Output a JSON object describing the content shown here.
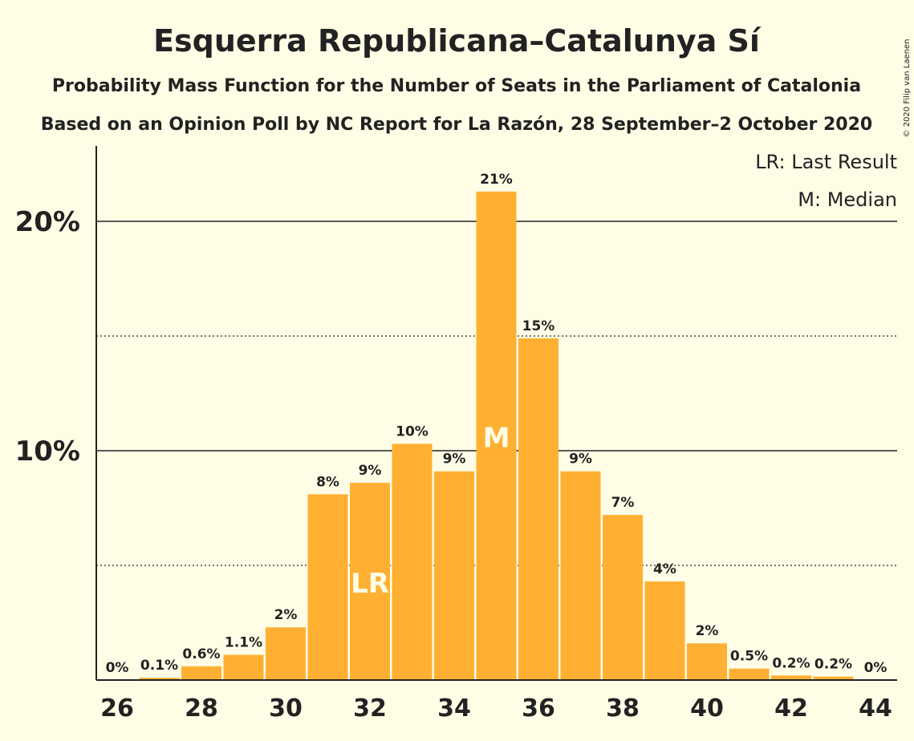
{
  "title": "Esquerra Republicana–Catalunya Sí",
  "subtitle1": "Probability Mass Function for the Number of Seats in the Parliament of Catalonia",
  "subtitle2": "Based on an Opinion Poll by NC Report for La Razón, 28 September–2 October 2020",
  "copyright": "© 2020 Filip van Laenen",
  "legend": {
    "lr": "LR: Last Result",
    "m": "M: Median"
  },
  "colors": {
    "bar": "#FFB033",
    "background": "#FFFDE6",
    "text": "#222222"
  },
  "chart_data": {
    "type": "bar",
    "x": [
      26,
      27,
      28,
      29,
      30,
      31,
      32,
      33,
      34,
      35,
      36,
      37,
      38,
      39,
      40,
      41,
      42,
      43,
      44
    ],
    "values": [
      0,
      0.1,
      0.6,
      1.1,
      2.3,
      8.1,
      8.6,
      10.3,
      9.1,
      21.3,
      14.9,
      9.1,
      7.2,
      4.3,
      1.6,
      0.5,
      0.2,
      0.15,
      0
    ],
    "labels": [
      "0%",
      "0.1%",
      "0.6%",
      "1.1%",
      "2%",
      "8%",
      "9%",
      "10%",
      "9%",
      "21%",
      "15%",
      "9%",
      "7%",
      "4%",
      "2%",
      "0.5%",
      "0.2%",
      "0.2%",
      "0%"
    ],
    "xticks": [
      "26",
      "28",
      "30",
      "32",
      "34",
      "36",
      "38",
      "40",
      "42",
      "44"
    ],
    "yticks": [
      {
        "value": 10,
        "label": "10%"
      },
      {
        "value": 20,
        "label": "20%"
      }
    ],
    "dotted_lines": [
      5,
      15
    ],
    "ylim": [
      0,
      23
    ],
    "last_result": {
      "x": 32,
      "label": "LR"
    },
    "median": {
      "x": 35,
      "label": "M"
    },
    "grid": "horizontal"
  }
}
